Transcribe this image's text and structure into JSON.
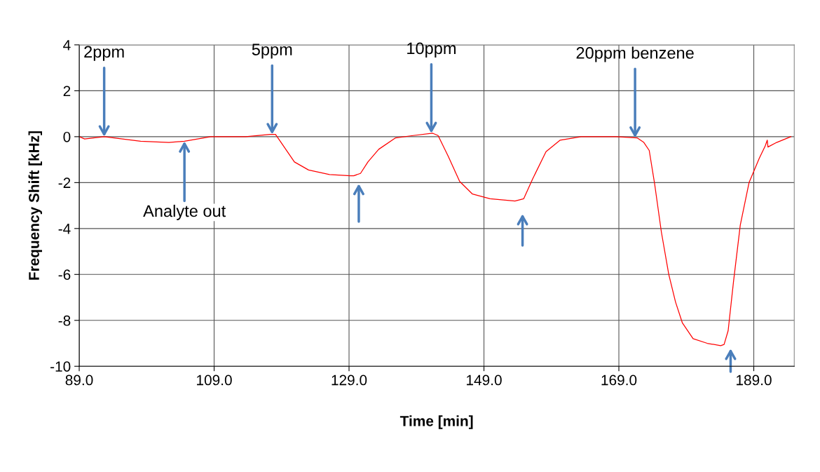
{
  "chart_data": {
    "type": "line",
    "xlabel": "Time [min]",
    "ylabel": "Frequency Shift [kHz]",
    "series": [
      {
        "color": "#ff0000",
        "x": [
          89.0,
          89.8,
          92.7,
          98.1,
          102.3,
          104.6,
          108.5,
          113.7,
          117.3,
          118.1,
          118.8,
          120.9,
          123.0,
          126.1,
          129.2,
          129.7,
          130.7,
          131.8,
          133.4,
          135.9,
          138.5,
          141.4,
          142.2,
          143.7,
          145.4,
          147.3,
          149.9,
          153.6,
          154.9,
          156.2,
          158.2,
          160.3,
          163.4,
          168.6,
          171.7,
          172.7,
          173.5,
          174.3,
          175.3,
          176.4,
          177.4,
          178.4,
          180.0,
          182.1,
          184.1,
          184.6,
          185.2,
          186.0,
          187.0,
          188.3,
          189.8,
          190.7,
          191.0,
          191.1,
          192.4,
          194.5
        ],
        "values": [
          0,
          -0.1,
          0,
          -0.2,
          -0.25,
          -0.2,
          0,
          0,
          0.1,
          0.1,
          -0.2,
          -1.1,
          -1.45,
          -1.65,
          -1.7,
          -1.7,
          -1.6,
          -1.1,
          -0.55,
          -0.05,
          0.05,
          0.15,
          0.05,
          -0.85,
          -1.95,
          -2.5,
          -2.7,
          -2.8,
          -2.7,
          -1.85,
          -0.65,
          -0.15,
          0,
          0,
          -0.05,
          -0.25,
          -0.6,
          -2.05,
          -4.15,
          -6,
          -7.2,
          -8.1,
          -8.8,
          -9.0,
          -9.1,
          -9.05,
          -8.45,
          -6.3,
          -3.85,
          -2.0,
          -0.95,
          -0.4,
          -0.15,
          -0.45,
          -0.25,
          0
        ]
      }
    ],
    "xlim": [
      89,
      195
    ],
    "xticks": [
      {
        "value": 89,
        "label": "89.0"
      },
      {
        "value": 109,
        "label": "109.0"
      },
      {
        "value": 129,
        "label": "129.0"
      },
      {
        "value": 149,
        "label": "149.0"
      },
      {
        "value": 169,
        "label": "169.0"
      },
      {
        "value": 189,
        "label": "189.0"
      }
    ],
    "ylim": [
      -10,
      4
    ],
    "yticks": [
      -10,
      -8,
      -6,
      -4,
      -2,
      0,
      2,
      4
    ],
    "grid": true,
    "legend": false,
    "marker": "none",
    "line_style": "solid",
    "annotations": [
      {
        "text": "2ppm",
        "x": 92.7,
        "y": 0
      },
      {
        "text": "5ppm",
        "x": 117.6,
        "y": 0.1
      },
      {
        "text": "10ppm",
        "x": 141.2,
        "y": 0.15
      },
      {
        "text": "20ppm benzene",
        "x": 171.4,
        "y": -0.05
      },
      {
        "text": "Analyte out",
        "x": 104.6,
        "y": -0.2
      }
    ]
  }
}
